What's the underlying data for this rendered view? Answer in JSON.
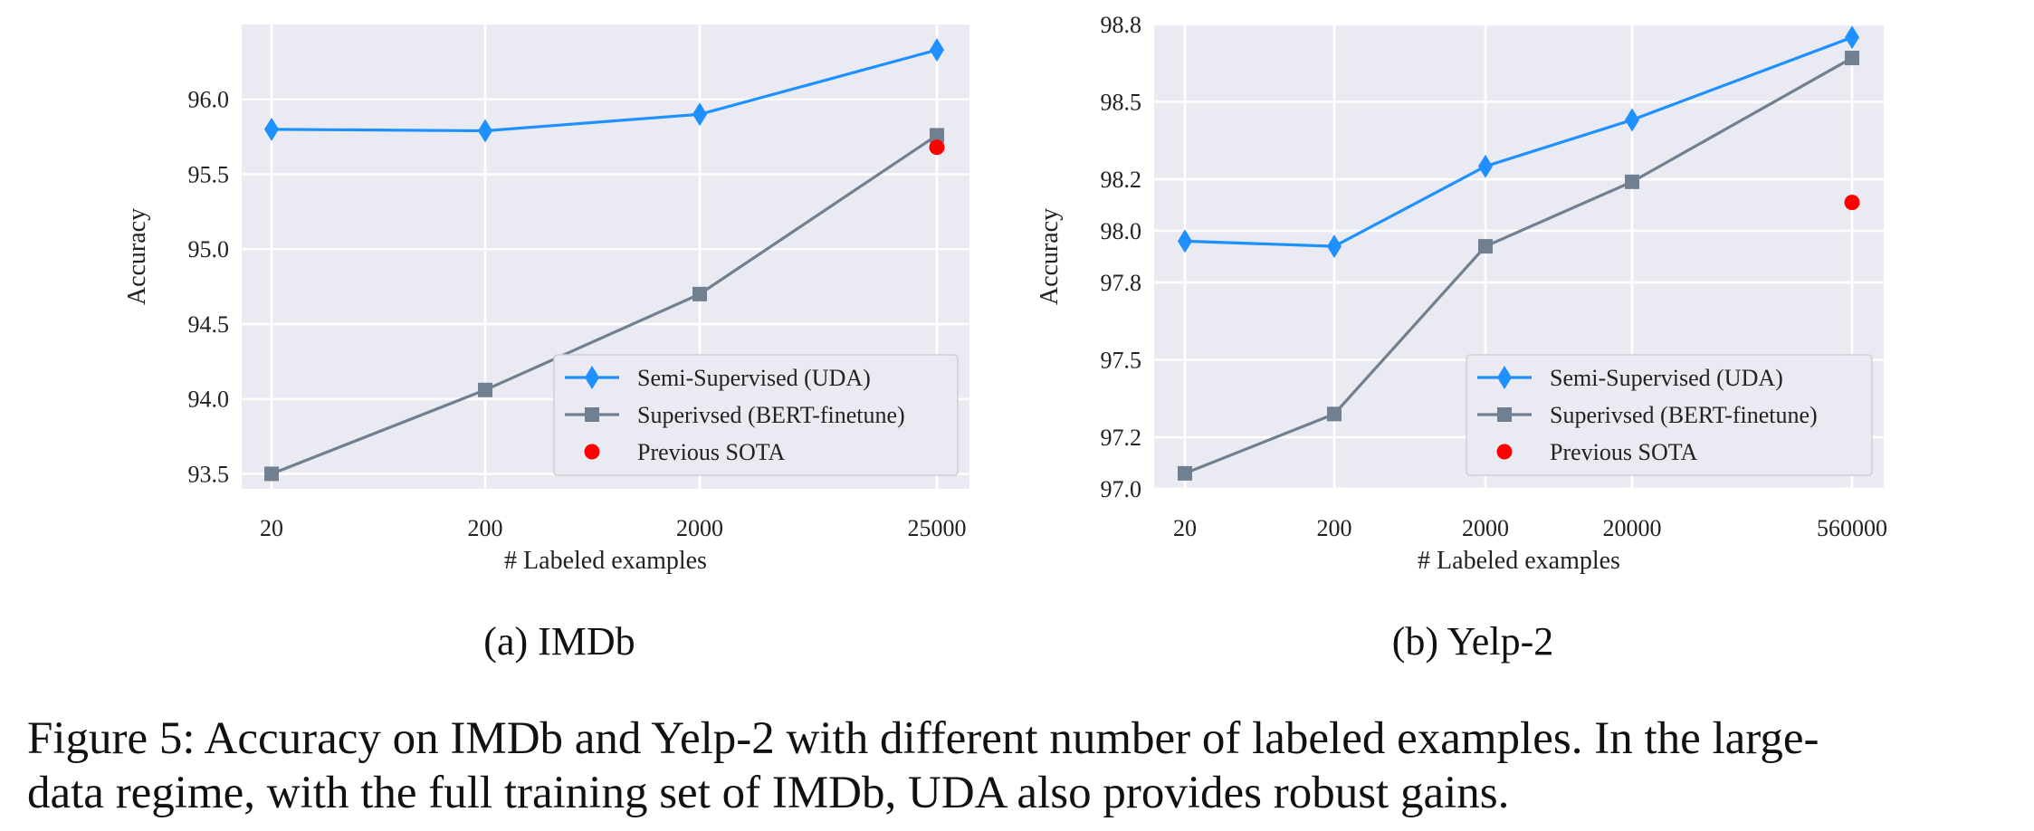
{
  "chart_data": [
    {
      "type": "line",
      "subcaption": "(a) IMDb",
      "xlabel": "# Labeled examples",
      "ylabel": "Accuracy",
      "categories": [
        "20",
        "200",
        "2000",
        "25000"
      ],
      "ylim": [
        93.4,
        96.5
      ],
      "yticks": [
        "93.5",
        "94.0",
        "94.5",
        "95.0",
        "95.5",
        "96.0"
      ],
      "grid": true,
      "legend_position": "lower-right",
      "series": [
        {
          "name": "Semi-Supervised (UDA)",
          "values": [
            95.8,
            95.79,
            95.9,
            96.33
          ],
          "color": "#1e90ff",
          "marker": "diamond"
        },
        {
          "name": "Superivsed (BERT-finetune)",
          "values": [
            93.5,
            94.06,
            94.7,
            95.76
          ],
          "color": "#708090",
          "marker": "square"
        }
      ],
      "points": [
        {
          "name": "Previous SOTA",
          "category": "25000",
          "value": 95.68,
          "color": "#ff0000",
          "marker": "circle"
        }
      ]
    },
    {
      "type": "line",
      "subcaption": "(b) Yelp-2",
      "xlabel": "# Labeled examples",
      "ylabel": "Accuracy",
      "categories": [
        "20",
        "200",
        "2000",
        "20000",
        "560000"
      ],
      "ylim": [
        97.0,
        98.8
      ],
      "yticks": [
        "97.0",
        "97.2",
        "97.5",
        "97.8",
        "98.0",
        "98.2",
        "98.5",
        "98.8"
      ],
      "grid": true,
      "legend_position": "lower-right",
      "series": [
        {
          "name": "Semi-Supervised (UDA)",
          "values": [
            97.96,
            97.94,
            98.25,
            98.43,
            98.75
          ],
          "color": "#1e90ff",
          "marker": "diamond"
        },
        {
          "name": "Superivsed (BERT-finetune)",
          "values": [
            97.06,
            97.29,
            97.94,
            98.19,
            98.67
          ],
          "color": "#708090",
          "marker": "square"
        }
      ],
      "points": [
        {
          "name": "Previous SOTA",
          "category": "560000",
          "value": 98.11,
          "color": "#ff0000",
          "marker": "circle"
        }
      ]
    }
  ],
  "caption": {
    "line1": "Figure 5: Accuracy on IMDb and Yelp-2 with different number of labeled examples. In the large-",
    "line2": "data regime, with the full training set of IMDb, UDA also provides robust gains."
  }
}
